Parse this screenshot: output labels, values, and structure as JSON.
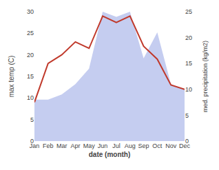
{
  "chart_data": {
    "type": "line",
    "categories": [
      "Jan",
      "Feb",
      "Mar",
      "Apr",
      "May",
      "Jun",
      "Jul",
      "Aug",
      "Sep",
      "Oct",
      "Nov",
      "Dec"
    ],
    "series": [
      {
        "type": "area",
        "axis": "y2",
        "color": "#c5cdf0",
        "values": [
          8,
          8,
          9,
          11,
          14,
          25,
          24,
          25,
          16,
          21,
          11,
          10
        ]
      },
      {
        "type": "line",
        "color": "#c0392b",
        "values": [
          9,
          18,
          20,
          23,
          21.5,
          29,
          27.5,
          29,
          22,
          19,
          13,
          12
        ]
      }
    ],
    "xlabel": "date (month)",
    "ylabel": "max temp (C)",
    "y2label": "med. precipitation (kg/m2)",
    "ylim": [
      0,
      30
    ],
    "yticks": [
      0,
      5,
      10,
      15,
      20,
      25,
      30
    ],
    "y2lim": [
      0,
      25
    ],
    "y2ticks": [
      0,
      5,
      10,
      15,
      20,
      25
    ],
    "grid": false
  }
}
